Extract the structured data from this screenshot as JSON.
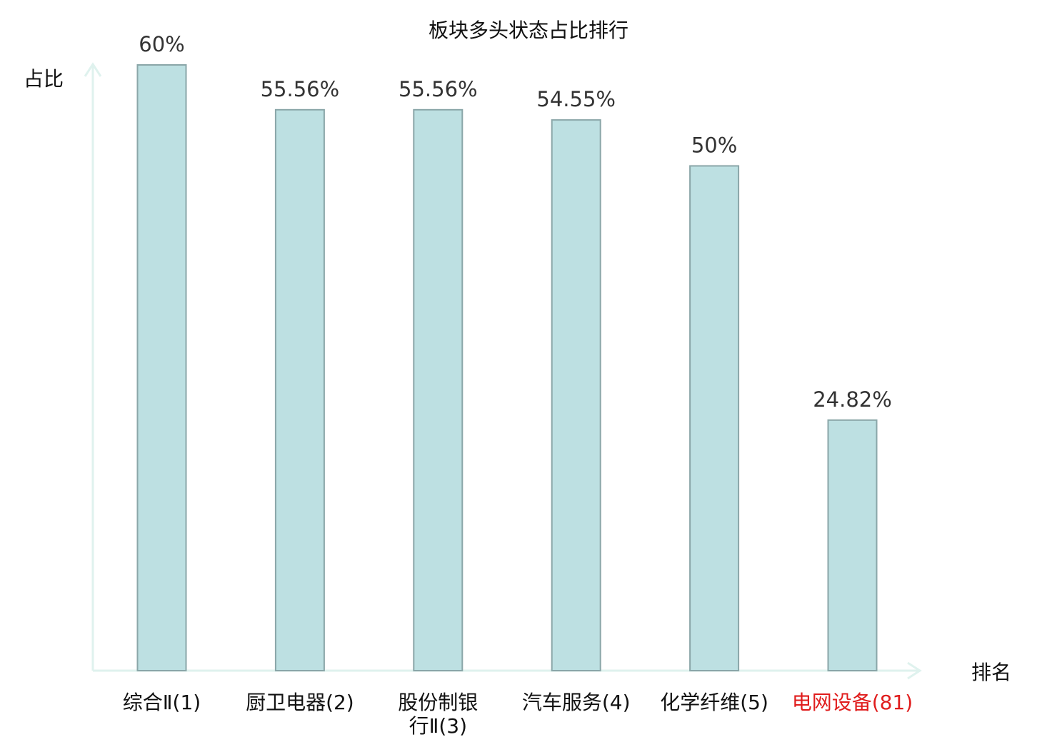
{
  "chart_data": {
    "type": "bar",
    "title": "板块多头状态占比排行",
    "ylabel": "占比",
    "xlabel": "排名",
    "categories": [
      [
        "综合Ⅱ(1)"
      ],
      [
        "厨卫电器(2)"
      ],
      [
        "股份制银",
        "行Ⅱ(3)"
      ],
      [
        "汽车服务(4)"
      ],
      [
        "化学纤维(5)"
      ],
      [
        "电网设备(81)"
      ]
    ],
    "values": [
      60,
      55.56,
      55.56,
      54.55,
      50,
      24.82
    ],
    "value_labels": [
      "60%",
      "55.56%",
      "55.56%",
      "54.55%",
      "50%",
      "24.82%"
    ],
    "highlight_index": 5,
    "ylim": [
      0,
      60
    ],
    "grid": false,
    "legend": "none",
    "colors": {
      "bar_fill": "#bde0e2",
      "bar_stroke": "#8aa6a8",
      "axis": "#dff2ee",
      "highlight_label": "#e01c1c"
    }
  }
}
